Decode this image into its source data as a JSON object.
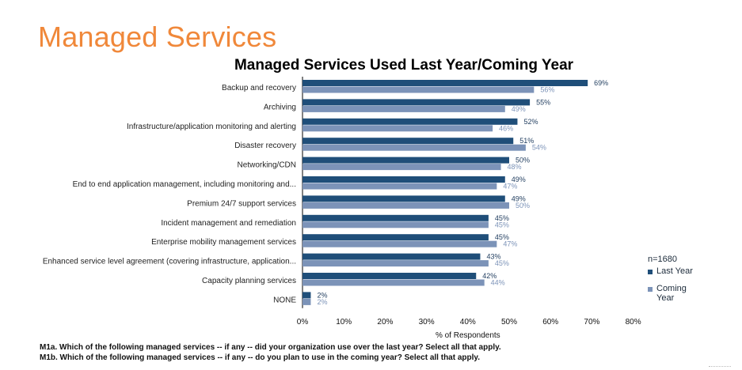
{
  "page": {
    "title": "Managed Services"
  },
  "chart_data": {
    "type": "bar",
    "orientation": "horizontal",
    "title": "Managed Services Used Last Year/Coming Year",
    "categories": [
      "Backup and recovery",
      "Archiving",
      "Infrastructure/application monitoring and alerting",
      "Disaster recovery",
      "Networking/CDN",
      "End to end application management, including monitoring and...",
      "Premium 24/7 support services",
      "Incident management and remediation",
      "Enterprise mobility management services",
      "Enhanced service level agreement (covering infrastructure, application...",
      "Capacity planning services",
      "NONE"
    ],
    "series": [
      {
        "name": "Last Year",
        "color": "#1f4e79",
        "label_color": "#1f3c5e",
        "values": [
          69,
          55,
          52,
          51,
          50,
          49,
          49,
          45,
          45,
          43,
          42,
          2
        ]
      },
      {
        "name": "Coming Year",
        "color": "#7c93b8",
        "label_color": "#7c93b8",
        "values": [
          56,
          49,
          46,
          54,
          48,
          47,
          50,
          45,
          47,
          45,
          44,
          2
        ]
      }
    ],
    "xlabel": "% of Respondents",
    "ylabel": "",
    "xlim": [
      0,
      80
    ],
    "xticks": [
      0,
      10,
      20,
      30,
      40,
      50,
      60,
      70,
      80
    ],
    "tick_suffix": "%",
    "grid": false,
    "legend_position": "bottom-right"
  },
  "legend": {
    "n_label": "n=1680",
    "items": [
      {
        "label": "Last Year",
        "color": "#1f4e79"
      },
      {
        "label": "Coming Year",
        "color": "#7c93b8"
      }
    ]
  },
  "footnotes": [
    "M1a. Which of the following managed services -- if any -- did your organization use over the last year? Select all that apply.",
    "M1b. Which of the following managed services -- if any -- do you plan to use in the coming year? Select all that apply."
  ]
}
